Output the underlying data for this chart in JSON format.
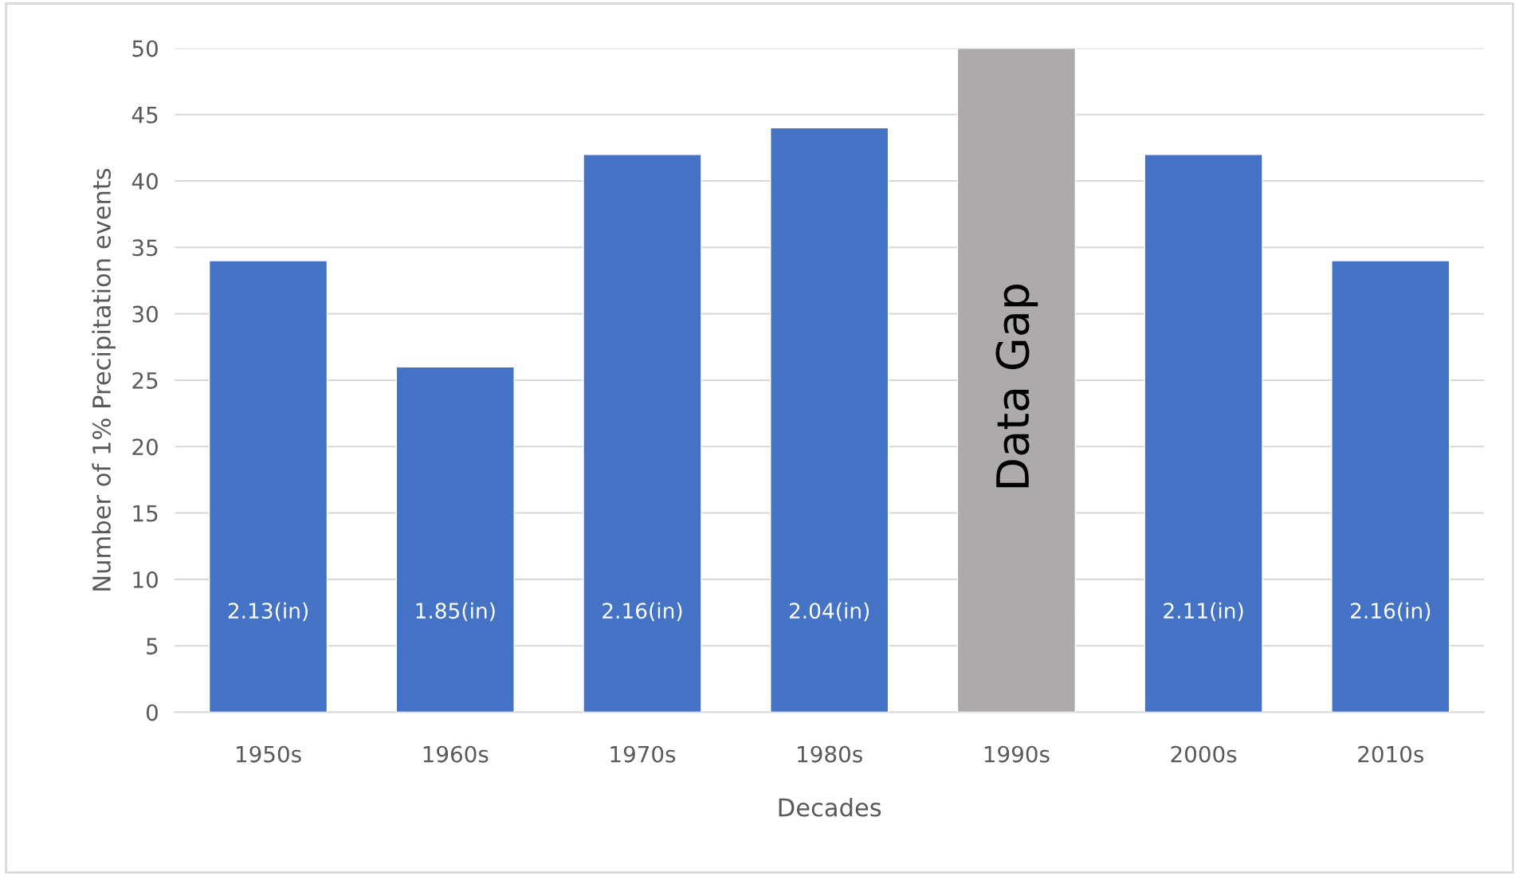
{
  "chart_data": {
    "type": "bar",
    "xlabel": "Decades",
    "ylabel": "Number of 1% Precipitation events",
    "categories": [
      "1950s",
      "1960s",
      "1970s",
      "1980s",
      "1990s",
      "2000s",
      "2010s"
    ],
    "values": [
      34,
      26,
      42,
      44,
      50,
      42,
      34
    ],
    "colors": [
      "#4472c4",
      "#4472c4",
      "#4472c4",
      "#4472c4",
      "#aeaaaa",
      "#4472c4",
      "#4472c4"
    ],
    "annotations": [
      "2.13(in)",
      "1.85(in)",
      "2.16(in)",
      "2.04(in)",
      "Data Gap",
      "2.11(in)",
      "2.16(in)"
    ],
    "ylim": [
      0,
      50
    ],
    "yticks": [
      0,
      5,
      10,
      15,
      20,
      25,
      30,
      35,
      40,
      45,
      50
    ],
    "grid": "y",
    "legend": false
  }
}
